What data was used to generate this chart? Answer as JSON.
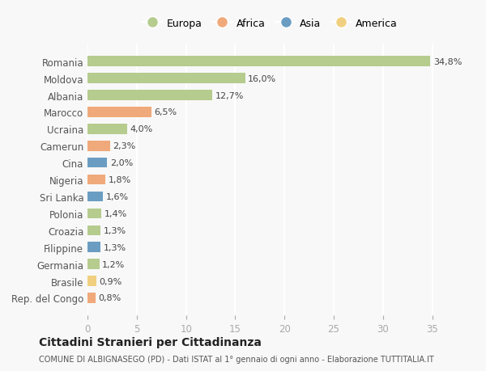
{
  "countries": [
    "Romania",
    "Moldova",
    "Albania",
    "Marocco",
    "Ucraina",
    "Camerun",
    "Cina",
    "Nigeria",
    "Sri Lanka",
    "Polonia",
    "Croazia",
    "Filippine",
    "Germania",
    "Brasile",
    "Rep. del Congo"
  ],
  "values": [
    34.8,
    16.0,
    12.7,
    6.5,
    4.0,
    2.3,
    2.0,
    1.8,
    1.6,
    1.4,
    1.3,
    1.3,
    1.2,
    0.9,
    0.8
  ],
  "labels": [
    "34,8%",
    "16,0%",
    "12,7%",
    "6,5%",
    "4,0%",
    "2,3%",
    "2,0%",
    "1,8%",
    "1,6%",
    "1,4%",
    "1,3%",
    "1,3%",
    "1,2%",
    "0,9%",
    "0,8%"
  ],
  "continents": [
    "Europa",
    "Europa",
    "Europa",
    "Africa",
    "Europa",
    "Africa",
    "Asia",
    "Africa",
    "Asia",
    "Europa",
    "Europa",
    "Asia",
    "Europa",
    "America",
    "Africa"
  ],
  "colors": {
    "Europa": "#b5cc8e",
    "Africa": "#f0a97a",
    "Asia": "#6b9dc2",
    "America": "#f0d080"
  },
  "legend_order": [
    "Europa",
    "Africa",
    "Asia",
    "America"
  ],
  "title": "Cittadini Stranieri per Cittadinanza",
  "subtitle": "COMUNE DI ALBIGNASEGO (PD) - Dati ISTAT al 1° gennaio di ogni anno - Elaborazione TUTTITALIA.IT",
  "xlim": [
    0,
    37
  ],
  "xticks": [
    0,
    5,
    10,
    15,
    20,
    25,
    30,
    35
  ],
  "background_color": "#f8f8f8",
  "grid_color": "#ffffff",
  "bar_height": 0.6
}
